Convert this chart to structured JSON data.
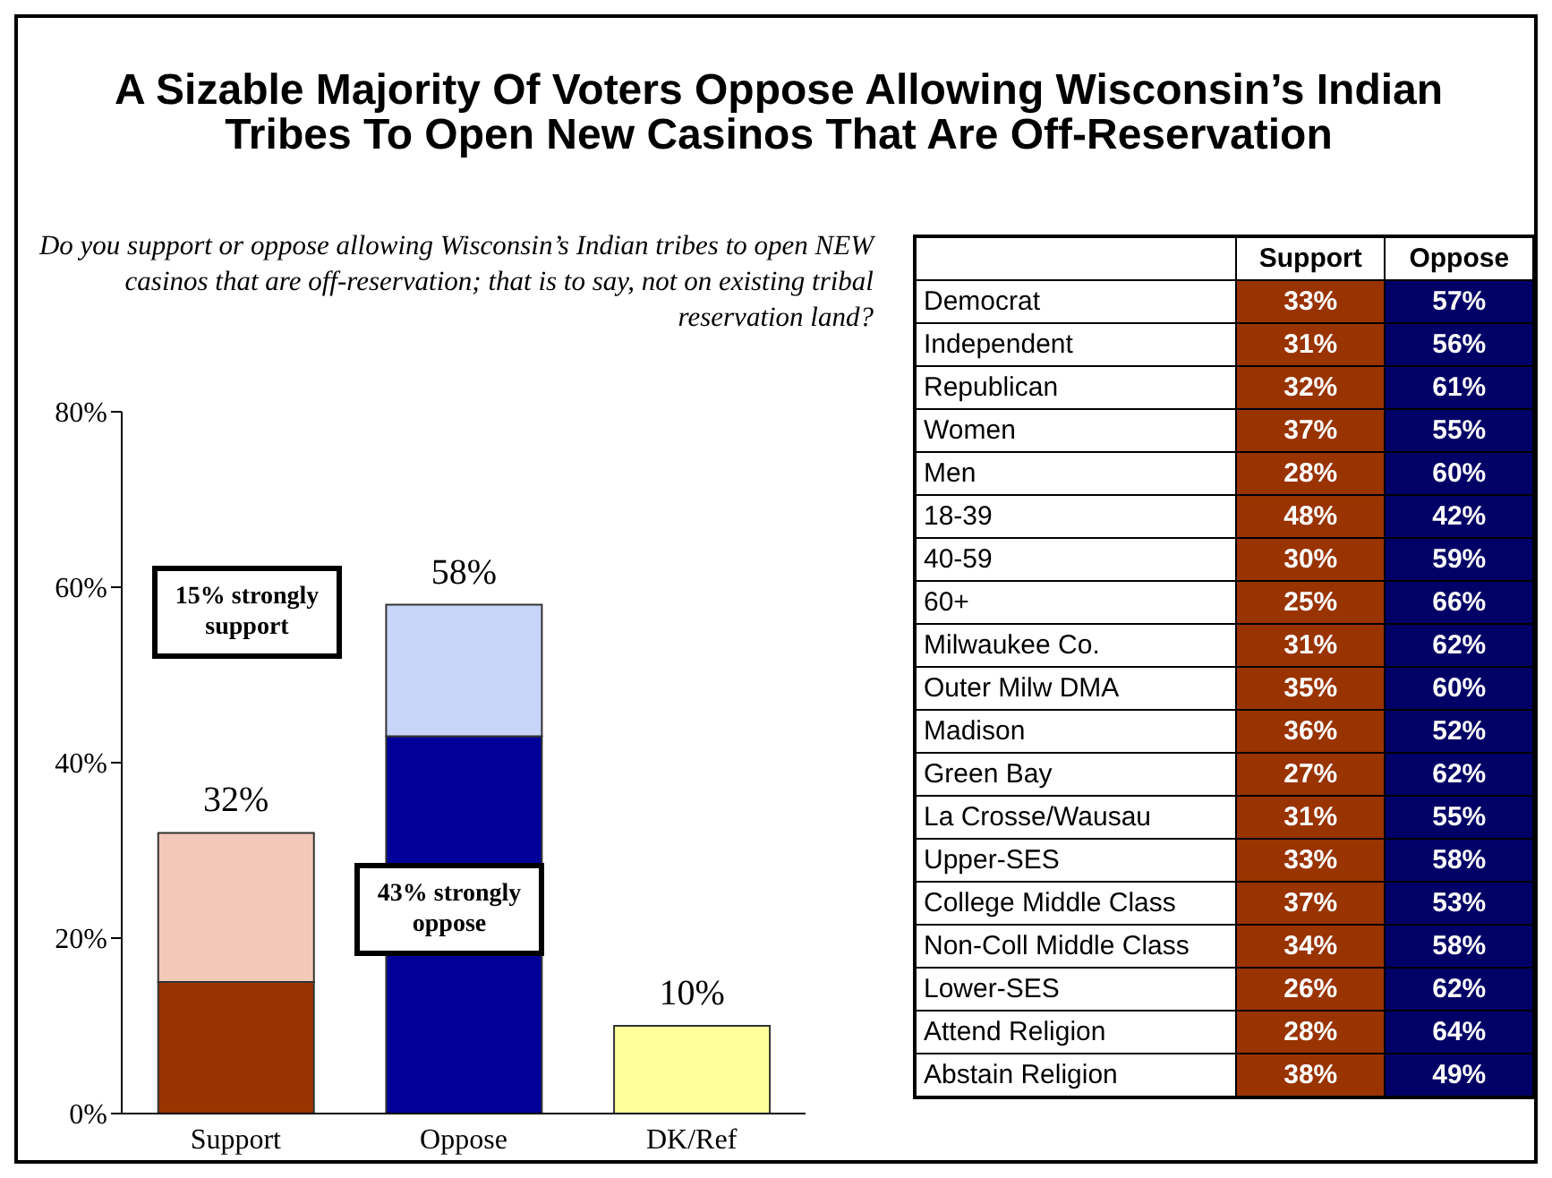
{
  "chart_data": [
    {
      "type": "bar",
      "title": "A Sizable Majority Of Voters Oppose Allowing Wisconsin’s Indian Tribes To Open New Casinos That Are Off-Reservation",
      "subtitle": "Do you support or oppose allowing Wisconsin’s Indian tribes to open NEW casinos that are off-reservation; that is to say, not on existing tribal reservation land?",
      "categories": [
        "Support",
        "Oppose",
        "DK/Ref"
      ],
      "stacked": true,
      "series": [
        {
          "colors": [
            "#993300",
            "#000099",
            "#ffff99"
          ],
          "values": [
            15,
            43,
            10
          ]
        },
        {
          "colors": [
            "#f2c8b8",
            "#c8d4f8",
            null
          ],
          "values": [
            17,
            15,
            null
          ]
        }
      ],
      "totals": [
        "32%",
        "58%",
        "10%"
      ],
      "annotations": [
        "15% strongly support",
        "43% strongly oppose"
      ],
      "ylim": [
        0,
        80
      ],
      "yticks": [
        {
          "value": 0,
          "label": "0%"
        },
        {
          "value": 20,
          "label": "20%"
        },
        {
          "value": 40,
          "label": "40%"
        },
        {
          "value": 60,
          "label": "60%"
        },
        {
          "value": 80,
          "label": "80%"
        }
      ],
      "grid": false
    },
    {
      "type": "heatmap",
      "categories": [
        "Support",
        "Oppose"
      ],
      "colors": [
        "#993300",
        "#000066"
      ],
      "y_categories": [
        "Democrat",
        "Independent",
        "Republican",
        "Women",
        "Men",
        "18-39",
        "40-59",
        "60+",
        "Milwaukee Co.",
        "Outer Milw DMA",
        "Madison",
        "Green Bay",
        "La Crosse/Wausau",
        "Upper-SES",
        "College Middle Class",
        "Non-Coll Middle Class",
        "Lower-SES",
        "Attend Religion",
        "Abstain Religion"
      ],
      "cells": [
        [
          33,
          57
        ],
        [
          31,
          56
        ],
        [
          32,
          61
        ],
        [
          37,
          55
        ],
        [
          28,
          60
        ],
        [
          48,
          42
        ],
        [
          30,
          59
        ],
        [
          25,
          66
        ],
        [
          31,
          62
        ],
        [
          35,
          60
        ],
        [
          36,
          52
        ],
        [
          27,
          62
        ],
        [
          31,
          55
        ],
        [
          33,
          58
        ],
        [
          37,
          53
        ],
        [
          34,
          58
        ],
        [
          26,
          62
        ],
        [
          28,
          64
        ],
        [
          38,
          49
        ]
      ],
      "cell_labels": [
        [
          "33%",
          "57%"
        ],
        [
          "31%",
          "56%"
        ],
        [
          "32%",
          "61%"
        ],
        [
          "37%",
          "55%"
        ],
        [
          "28%",
          "60%"
        ],
        [
          "48%",
          "42%"
        ],
        [
          "30%",
          "59%"
        ],
        [
          "25%",
          "66%"
        ],
        [
          "31%",
          "62%"
        ],
        [
          "35%",
          "60%"
        ],
        [
          "36%",
          "52%"
        ],
        [
          "27%",
          "62%"
        ],
        [
          "31%",
          "55%"
        ],
        [
          "33%",
          "58%"
        ],
        [
          "37%",
          "53%"
        ],
        [
          "34%",
          "58%"
        ],
        [
          "26%",
          "62%"
        ],
        [
          "28%",
          "64%"
        ],
        [
          "38%",
          "49%"
        ]
      ]
    }
  ]
}
